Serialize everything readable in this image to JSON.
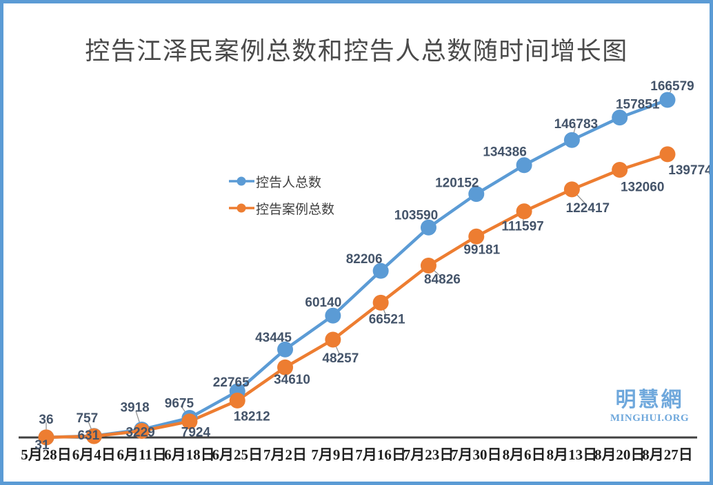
{
  "frame": {
    "border_color": "#5b9bd5",
    "background": "#ffffff"
  },
  "watermark": {
    "line1": "明慧網",
    "line2": "MINGHUI.ORG",
    "color": "#6fa8dc"
  },
  "chart_data": {
    "type": "line",
    "title": "控告江泽民案例总数和控告人总数随时间增长图",
    "title_color": "#4a4a4a",
    "categories": [
      "5月28日",
      "6月4日",
      "6月11日",
      "6月18日",
      "6月25日",
      "7月2日",
      "7月9日",
      "7月16日",
      "7月23日",
      "7月30日",
      "8月6日",
      "8月13日",
      "8月20日",
      "8月27日"
    ],
    "series": [
      {
        "name": "控告人总数",
        "color": "#5b9bd5",
        "values": [
          36,
          757,
          3918,
          9675,
          22765,
          43445,
          60140,
          82206,
          103590,
          120152,
          134386,
          146783,
          157851,
          166579
        ]
      },
      {
        "name": "控告案例总数",
        "color": "#ed7d31",
        "values": [
          31,
          631,
          3229,
          7924,
          18212,
          34610,
          48257,
          66521,
          84826,
          99181,
          111597,
          122417,
          132060,
          139774
        ]
      }
    ],
    "ylim": [
      0,
      170000
    ],
    "grid": false,
    "y_axis_visible": false,
    "x_axis_line_color": "#404040",
    "data_labels": true,
    "data_label_color": "#44546a",
    "axis_label_color": "#1f1f1f",
    "legend_position": "inside-left-middle"
  }
}
